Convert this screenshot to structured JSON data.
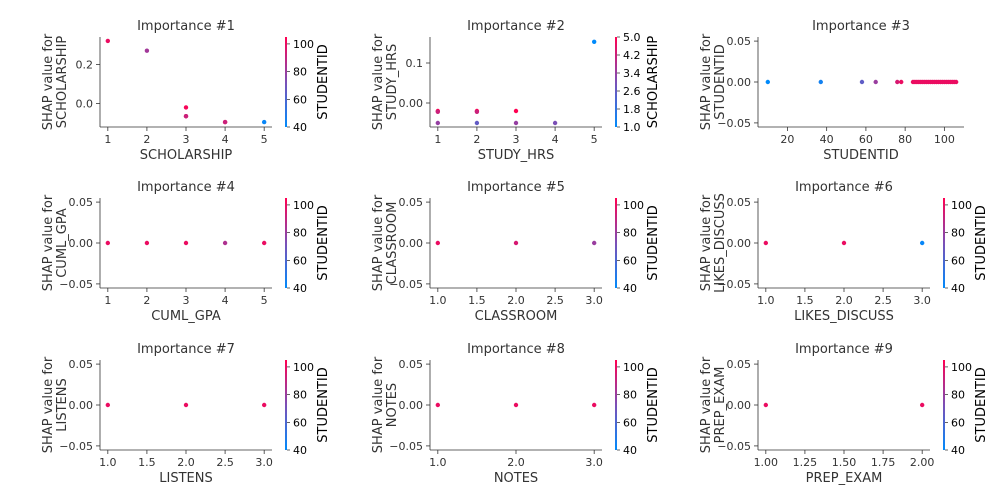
{
  "chart_data": [
    {
      "type": "scatter",
      "title": "Importance #1",
      "xlabel": "SCHOLARSHIP",
      "ylabel": [
        "SHAP value for",
        "SCHOLARSHIP"
      ],
      "xlim": [
        0.8,
        5.2
      ],
      "ylim": [
        -0.12,
        0.34
      ],
      "xticks": [
        1,
        2,
        3,
        4,
        5
      ],
      "xtick_labels": [
        "1",
        "2",
        "3",
        "4",
        "5"
      ],
      "yticks": [
        0.0,
        0.2
      ],
      "ytick_labels": [
        "0.0",
        "0.2"
      ],
      "colorbar": {
        "label": "STUDENTID",
        "range": [
          40,
          105
        ],
        "ticks": [
          40,
          60,
          80,
          100
        ],
        "tick_labels": [
          "40",
          "60",
          "80",
          "100"
        ]
      },
      "points": [
        {
          "x": 1,
          "y": 0.32,
          "c": 100
        },
        {
          "x": 2,
          "y": 0.27,
          "c": 82
        },
        {
          "x": 3,
          "y": -0.02,
          "c": 103
        },
        {
          "x": 3,
          "y": -0.065,
          "c": 100
        },
        {
          "x": 3,
          "y": -0.065,
          "c": 92
        },
        {
          "x": 4,
          "y": -0.095,
          "c": 103
        },
        {
          "x": 4,
          "y": -0.095,
          "c": 92
        },
        {
          "x": 5,
          "y": -0.095,
          "c": 42
        }
      ]
    },
    {
      "type": "scatter",
      "title": "Importance #2",
      "xlabel": "STUDY_HRS",
      "ylabel": [
        "SHAP value for",
        "STUDY_HRS"
      ],
      "xlim": [
        0.8,
        5.2
      ],
      "ylim": [
        -0.06,
        0.165
      ],
      "xticks": [
        1,
        2,
        3,
        4,
        5
      ],
      "xtick_labels": [
        "1",
        "2",
        "3",
        "4",
        "5"
      ],
      "yticks": [
        0.0,
        0.1
      ],
      "ytick_labels": [
        "0.00",
        "0.1"
      ],
      "colorbar": {
        "label": "SCHOLARSHIP",
        "range": [
          1.0,
          5.0
        ],
        "ticks": [
          1.0,
          1.8,
          2.6,
          3.4,
          4.2,
          5.0
        ],
        "tick_labels": [
          "1.0",
          "1.8",
          "2.6",
          "3.4",
          "4.2",
          "5.0"
        ]
      },
      "points": [
        {
          "x": 1,
          "y": -0.02,
          "c": 5.0
        },
        {
          "x": 1,
          "y": -0.022,
          "c": 4.2
        },
        {
          "x": 1,
          "y": -0.05,
          "c": 3.4
        },
        {
          "x": 2,
          "y": -0.02,
          "c": 5.0
        },
        {
          "x": 2,
          "y": -0.022,
          "c": 4.2
        },
        {
          "x": 2,
          "y": -0.05,
          "c": 2.6
        },
        {
          "x": 3,
          "y": -0.02,
          "c": 5.0
        },
        {
          "x": 3,
          "y": -0.05,
          "c": 3.4
        },
        {
          "x": 4,
          "y": -0.05,
          "c": 3.0
        },
        {
          "x": 5,
          "y": 0.153,
          "c": 1.0
        }
      ]
    },
    {
      "type": "scatter",
      "title": "Importance #3",
      "xlabel": "STUDENTID",
      "ylabel": [
        "SHAP value for",
        "STUDENTID"
      ],
      "xlim": [
        5,
        110
      ],
      "ylim": [
        -0.055,
        0.055
      ],
      "xticks": [
        20,
        40,
        60,
        80,
        100
      ],
      "xtick_labels": [
        "20",
        "40",
        "60",
        "80",
        "100"
      ],
      "yticks": [
        -0.05,
        0.0,
        0.05
      ],
      "ytick_labels": [
        "−0.05",
        "0.00",
        "0.05"
      ],
      "colorbar": null,
      "points": [
        {
          "x": 10,
          "y": 0,
          "c": 40
        },
        {
          "x": 37,
          "y": 0,
          "c": 45
        },
        {
          "x": 58,
          "y": 0,
          "c": 65
        },
        {
          "x": 65,
          "y": 0,
          "c": 80
        },
        {
          "x": 76,
          "y": 0,
          "c": 95
        },
        {
          "x": 78,
          "y": 0,
          "c": 100
        },
        {
          "x": 84,
          "y": 0,
          "c": 100
        },
        {
          "x": 85,
          "y": 0,
          "c": 100
        },
        {
          "x": 86,
          "y": 0,
          "c": 100
        },
        {
          "x": 87,
          "y": 0,
          "c": 100
        },
        {
          "x": 88,
          "y": 0,
          "c": 100
        },
        {
          "x": 89,
          "y": 0,
          "c": 100
        },
        {
          "x": 90,
          "y": 0,
          "c": 100
        },
        {
          "x": 91,
          "y": 0,
          "c": 100
        },
        {
          "x": 92,
          "y": 0,
          "c": 100
        },
        {
          "x": 93,
          "y": 0,
          "c": 100
        },
        {
          "x": 94,
          "y": 0,
          "c": 100
        },
        {
          "x": 95,
          "y": 0,
          "c": 100
        },
        {
          "x": 96,
          "y": 0,
          "c": 100
        },
        {
          "x": 97,
          "y": 0,
          "c": 100
        },
        {
          "x": 98,
          "y": 0,
          "c": 100
        },
        {
          "x": 99,
          "y": 0,
          "c": 100
        },
        {
          "x": 100,
          "y": 0,
          "c": 100
        },
        {
          "x": 101,
          "y": 0,
          "c": 100
        },
        {
          "x": 102,
          "y": 0,
          "c": 100
        },
        {
          "x": 103,
          "y": 0,
          "c": 100
        },
        {
          "x": 104,
          "y": 0,
          "c": 100
        },
        {
          "x": 105,
          "y": 0,
          "c": 100
        },
        {
          "x": 106,
          "y": 0,
          "c": 100
        }
      ]
    },
    {
      "type": "scatter",
      "title": "Importance #4",
      "xlabel": "CUML_GPA",
      "ylabel": [
        "SHAP value for",
        "CUML_GPA"
      ],
      "xlim": [
        0.8,
        5.2
      ],
      "ylim": [
        -0.055,
        0.055
      ],
      "xticks": [
        1,
        2,
        3,
        4,
        5
      ],
      "xtick_labels": [
        "1",
        "2",
        "3",
        "4",
        "5"
      ],
      "yticks": [
        -0.05,
        0.0,
        0.05
      ],
      "ytick_labels": [
        "−0.05",
        "0.00",
        "0.05"
      ],
      "colorbar": {
        "label": "STUDENTID",
        "range": [
          40,
          105
        ],
        "ticks": [
          40,
          60,
          80,
          100
        ],
        "tick_labels": [
          "40",
          "60",
          "80",
          "100"
        ]
      },
      "points": [
        {
          "x": 1,
          "y": 0,
          "c": 100
        },
        {
          "x": 2,
          "y": 0,
          "c": 100
        },
        {
          "x": 3,
          "y": 0,
          "c": 100
        },
        {
          "x": 4,
          "y": 0,
          "c": 85
        },
        {
          "x": 5,
          "y": 0,
          "c": 100
        }
      ]
    },
    {
      "type": "scatter",
      "title": "Importance #5",
      "xlabel": "CLASSROOM",
      "ylabel": [
        "SHAP value for",
        "CLASSROOM"
      ],
      "xlim": [
        0.9,
        3.1
      ],
      "ylim": [
        -0.055,
        0.055
      ],
      "xticks": [
        1.0,
        1.5,
        2.0,
        2.5,
        3.0
      ],
      "xtick_labels": [
        "1.0",
        "1.5",
        "2.0",
        "2.5",
        "3.0"
      ],
      "yticks": [
        -0.05,
        0.0,
        0.05
      ],
      "ytick_labels": [
        "−0.05",
        "0.00",
        "0.05"
      ],
      "colorbar": {
        "label": "STUDENTID",
        "range": [
          40,
          105
        ],
        "ticks": [
          40,
          60,
          80,
          100
        ],
        "tick_labels": [
          "40",
          "60",
          "80",
          "100"
        ]
      },
      "points": [
        {
          "x": 1,
          "y": 0,
          "c": 100
        },
        {
          "x": 2,
          "y": 0,
          "c": 95
        },
        {
          "x": 3,
          "y": 0,
          "c": 80
        }
      ]
    },
    {
      "type": "scatter",
      "title": "Importance #6",
      "xlabel": "LIKES_DISCUSS",
      "ylabel": [
        "SHAP value for",
        "LIKES_DISCUSS"
      ],
      "xlim": [
        0.9,
        3.1
      ],
      "ylim": [
        -0.055,
        0.055
      ],
      "xticks": [
        1.0,
        1.5,
        2.0,
        2.5,
        3.0
      ],
      "xtick_labels": [
        "1.0",
        "1.5",
        "2.0",
        "2.5",
        "3.0"
      ],
      "yticks": [
        -0.05,
        0.0,
        0.05
      ],
      "ytick_labels": [
        "−0.05",
        "0.00",
        "0.05"
      ],
      "colorbar": {
        "label": "STUDENTID",
        "range": [
          40,
          105
        ],
        "ticks": [
          40,
          60,
          80,
          100
        ],
        "tick_labels": [
          "40",
          "60",
          "80",
          "100"
        ]
      },
      "points": [
        {
          "x": 1,
          "y": 0,
          "c": 100
        },
        {
          "x": 2,
          "y": 0,
          "c": 100
        },
        {
          "x": 3,
          "y": 0,
          "c": 42
        }
      ]
    },
    {
      "type": "scatter",
      "title": "Importance #7",
      "xlabel": "LISTENS",
      "ylabel": [
        "SHAP value for",
        "LISTENS"
      ],
      "xlim": [
        0.9,
        3.1
      ],
      "ylim": [
        -0.055,
        0.055
      ],
      "xticks": [
        1.0,
        1.5,
        2.0,
        2.5,
        3.0
      ],
      "xtick_labels": [
        "1.0",
        "1.5",
        "2.0",
        "2.5",
        "3.0"
      ],
      "yticks": [
        -0.05,
        0.0,
        0.05
      ],
      "ytick_labels": [
        "−0.05",
        "0.00",
        "0.05"
      ],
      "colorbar": {
        "label": "STUDENTID",
        "range": [
          40,
          105
        ],
        "ticks": [
          40,
          60,
          80,
          100
        ],
        "tick_labels": [
          "40",
          "60",
          "80",
          "100"
        ]
      },
      "points": [
        {
          "x": 1,
          "y": 0,
          "c": 100
        },
        {
          "x": 2,
          "y": 0,
          "c": 100
        },
        {
          "x": 3,
          "y": 0,
          "c": 100
        }
      ]
    },
    {
      "type": "scatter",
      "title": "Importance #8",
      "xlabel": "NOTES",
      "ylabel": [
        "SHAP value for",
        "NOTES"
      ],
      "xlim": [
        0.9,
        3.1
      ],
      "ylim": [
        -0.055,
        0.055
      ],
      "xticks": [
        1.0,
        2.0,
        3.0
      ],
      "xtick_labels": [
        "1.0",
        "2.0",
        "3.0"
      ],
      "yticks": [
        -0.05,
        0.0,
        0.05
      ],
      "ytick_labels": [
        "−0.05",
        "0.00",
        "0.05"
      ],
      "colorbar": {
        "label": "STUDENTID",
        "range": [
          40,
          105
        ],
        "ticks": [
          40,
          60,
          80,
          100
        ],
        "tick_labels": [
          "40",
          "60",
          "80",
          "100"
        ]
      },
      "points": [
        {
          "x": 1,
          "y": 0,
          "c": 100
        },
        {
          "x": 2,
          "y": 0,
          "c": 100
        },
        {
          "x": 3,
          "y": 0,
          "c": 100
        }
      ]
    },
    {
      "type": "scatter",
      "title": "Importance #9",
      "xlabel": "PREP_EXAM",
      "ylabel": [
        "SHAP value for",
        "PREP_EXAM"
      ],
      "xlim": [
        0.95,
        2.05
      ],
      "ylim": [
        -0.055,
        0.055
      ],
      "xticks": [
        1.0,
        1.25,
        1.5,
        1.75,
        2.0
      ],
      "xtick_labels": [
        "1.00",
        "1.25",
        "1.50",
        "1.75",
        "2.00"
      ],
      "yticks": [
        -0.05,
        0.0,
        0.05
      ],
      "ytick_labels": [
        "−0.05",
        "0.00",
        "0.05"
      ],
      "colorbar": {
        "label": "STUDENTID",
        "range": [
          40,
          105
        ],
        "ticks": [
          40,
          60,
          80,
          100
        ],
        "tick_labels": [
          "40",
          "60",
          "80",
          "100"
        ]
      },
      "points": [
        {
          "x": 1,
          "y": 0,
          "c": 100
        },
        {
          "x": 2,
          "y": 0,
          "c": 100
        }
      ]
    }
  ],
  "colors": {
    "cmap_low": "#008afb",
    "cmap_mid": "#7b4fb6",
    "cmap_high": "#ff0052",
    "axis": "#333333"
  }
}
